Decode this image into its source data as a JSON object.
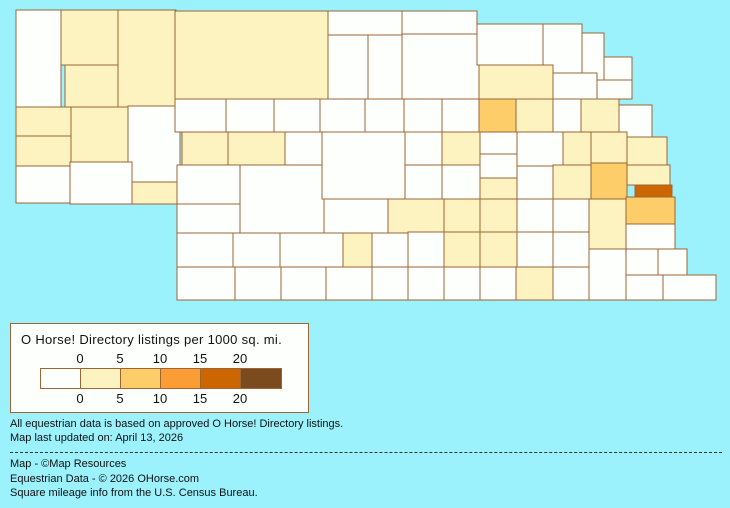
{
  "map": {
    "border_color": "#9C6633",
    "county_levels": [
      0,
      1,
      1,
      1,
      1,
      1,
      1,
      1,
      0,
      0,
      0,
      1,
      0,
      0,
      0,
      0,
      1,
      1,
      0,
      0,
      0,
      0,
      0,
      0,
      0,
      0,
      0,
      0,
      0,
      0,
      0,
      0,
      0,
      0,
      0,
      0,
      0,
      1,
      0,
      0,
      0,
      0,
      0,
      2,
      1,
      0,
      1,
      0,
      0,
      0,
      1,
      0,
      0,
      1,
      1,
      1,
      0,
      0,
      0,
      1,
      0,
      1,
      2,
      1,
      4,
      0,
      1,
      1,
      1,
      0,
      0,
      1,
      2,
      1,
      0,
      0,
      1,
      1,
      0,
      0,
      0,
      0,
      0,
      0,
      0,
      0,
      0,
      0,
      0,
      0,
      0,
      1,
      0,
      0,
      0,
      0,
      0
    ]
  },
  "legend": {
    "title": "O Horse! Directory listings per 1000 sq. mi.",
    "top_ticks": [
      "0",
      "5",
      "10",
      "15",
      "20"
    ],
    "bottom_ticks": [
      "0",
      "5",
      "10",
      "15",
      "20"
    ],
    "colors": [
      "#FDFFFD",
      "#FCF3C0",
      "#FDCD6A",
      "#FC9C35",
      "#CC6600",
      "#7B4A1E"
    ]
  },
  "notes": {
    "line1": "All equestrian data is based on approved O Horse! Directory listings.",
    "line2": "Map last updated on: April 13, 2026"
  },
  "credits": {
    "map": "Map - ©Map Resources",
    "data": "Equestrian Data - © 2026 OHorse.com",
    "census": "Square mileage info from the U.S. Census Bureau."
  }
}
